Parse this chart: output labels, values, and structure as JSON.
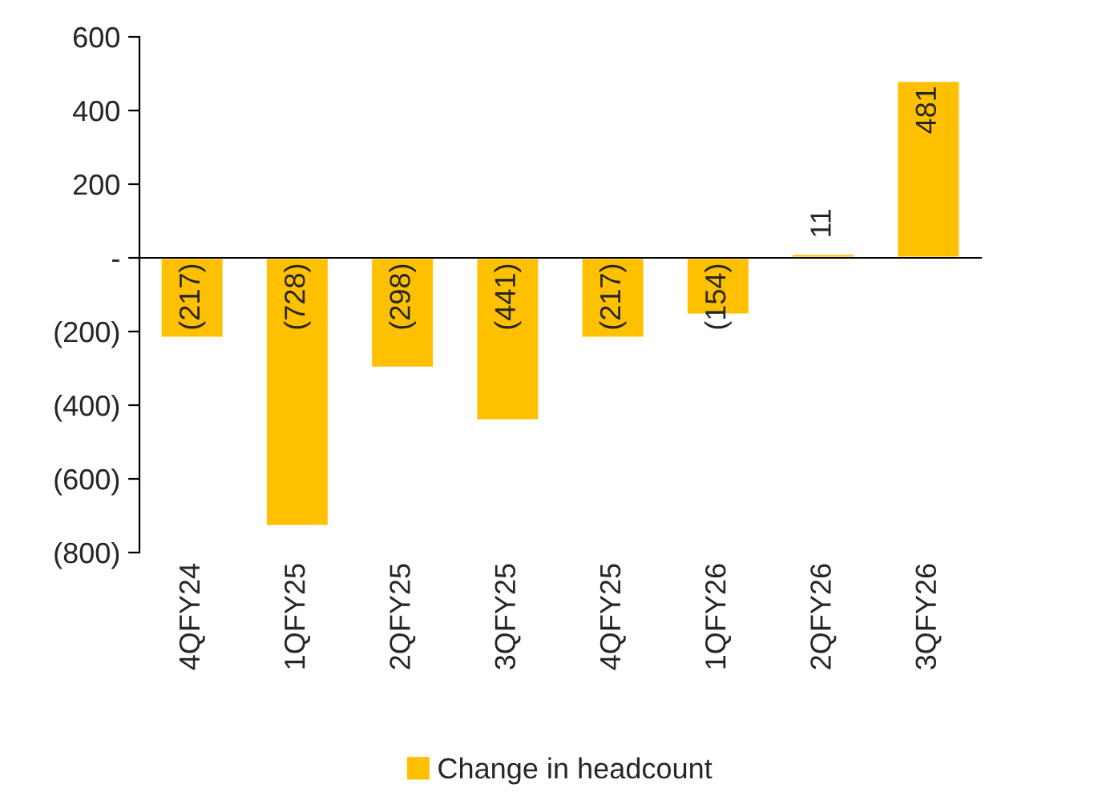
{
  "chart_data": {
    "type": "bar",
    "categories": [
      "4QFY24",
      "1QFY25",
      "2QFY25",
      "3QFY25",
      "4QFY25",
      "1QFY26",
      "2QFY26",
      "3QFY26"
    ],
    "series": [
      {
        "name": "Change in headcount",
        "color": "#ffc000",
        "values": [
          -217,
          -728,
          -298,
          -441,
          -217,
          -154,
          11,
          481
        ],
        "value_labels": [
          "(217)",
          "(728)",
          "(298)",
          "(441)",
          "(217)",
          "(154)",
          "11",
          "481"
        ]
      }
    ],
    "ylim": [
      -800,
      600
    ],
    "yticks": [
      {
        "value": -800,
        "label": "(800)"
      },
      {
        "value": -600,
        "label": "(600)"
      },
      {
        "value": -400,
        "label": "(400)"
      },
      {
        "value": -200,
        "label": "(200)"
      },
      {
        "value": 0,
        "label": "-"
      },
      200,
      400,
      600
    ],
    "legend": "bottom"
  }
}
